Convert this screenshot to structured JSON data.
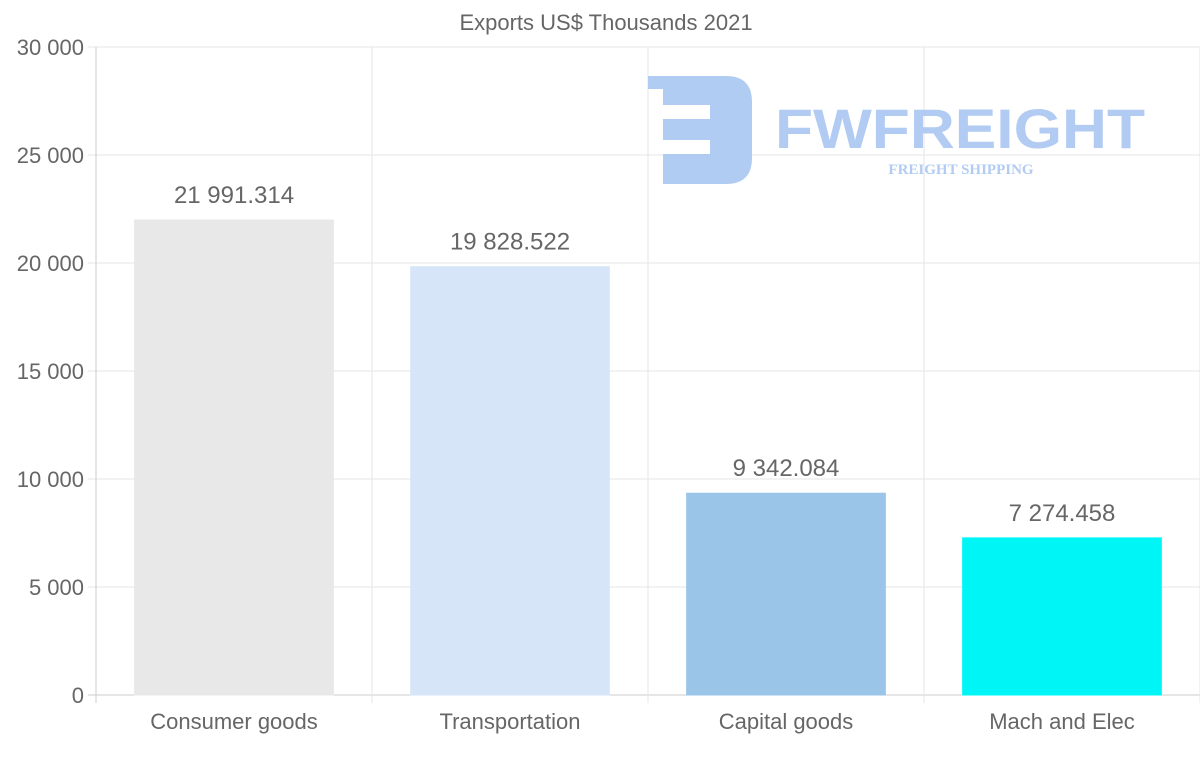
{
  "chart_data": {
    "type": "bar",
    "title": "Exports US$ Thousands 2021",
    "xlabel": "",
    "ylabel": "",
    "categories": [
      "Consumer goods",
      "Transportation",
      "Capital goods",
      "Mach and Elec"
    ],
    "values": [
      21991.314,
      19828.522,
      9342.084,
      7274.458
    ],
    "data_labels": [
      "21 991.314",
      "19 828.522",
      "9 342.084",
      "7 274.458"
    ],
    "colors": [
      "#e8e8e8",
      "#d6e6f8",
      "#9ac4e8",
      "#00f6f6"
    ],
    "ylim": [
      0,
      30000
    ],
    "yticks": [
      0,
      5000,
      10000,
      15000,
      20000,
      25000,
      30000
    ],
    "ytick_labels": [
      "0",
      "5 000",
      "10 000",
      "15 000",
      "20 000",
      "25 000",
      "30 000"
    ],
    "grid": true,
    "legend": "none"
  },
  "watermark": {
    "brand": "FWFREIGHT",
    "tagline": "FREIGHT SHIPPING",
    "color": "#a9c6f2"
  }
}
